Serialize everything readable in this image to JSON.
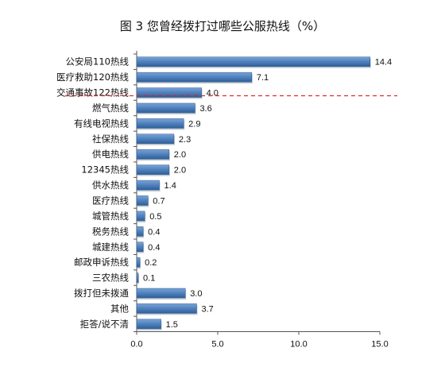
{
  "chart_data": {
    "type": "bar",
    "orientation": "horizontal",
    "title": "图 3  您曾经拨打过哪些公服热线（%）",
    "categories": [
      "公安局110热线",
      "医疗救助120热线",
      "交通事故122热线",
      "燃气热线",
      "有线电视热线",
      "社保热线",
      "供电热线",
      "12345热线",
      "供水热线",
      "医疗热线",
      "城管热线",
      "税务热线",
      "城建热线",
      "邮政申诉热线",
      "三农热线",
      "拨打但未拨通",
      "其他",
      "拒答/说不清"
    ],
    "values": [
      14.4,
      7.1,
      4.0,
      3.6,
      2.9,
      2.3,
      2.0,
      2.0,
      1.4,
      0.7,
      0.5,
      0.4,
      0.4,
      0.2,
      0.1,
      3.0,
      3.7,
      1.5
    ],
    "value_labels": [
      "14.4",
      "7.1",
      "4.0",
      "3.6",
      "2.9",
      "2.3",
      "2.0",
      "2.0",
      "1.4",
      "0.7",
      "0.5",
      "0.4",
      "0.4",
      "0.2",
      "0.1",
      "3.0",
      "3.7",
      "1.5"
    ],
    "x_ticks": [
      "0.0",
      "5.0",
      "10.0",
      "15.0"
    ],
    "x_tick_values": [
      0,
      5,
      10,
      15
    ],
    "xlim": [
      0,
      15
    ],
    "grid": false,
    "legend": "none",
    "bar_color": "#4f81bd",
    "annotation": "red dashed horizontal line below 交通事故122热线"
  }
}
